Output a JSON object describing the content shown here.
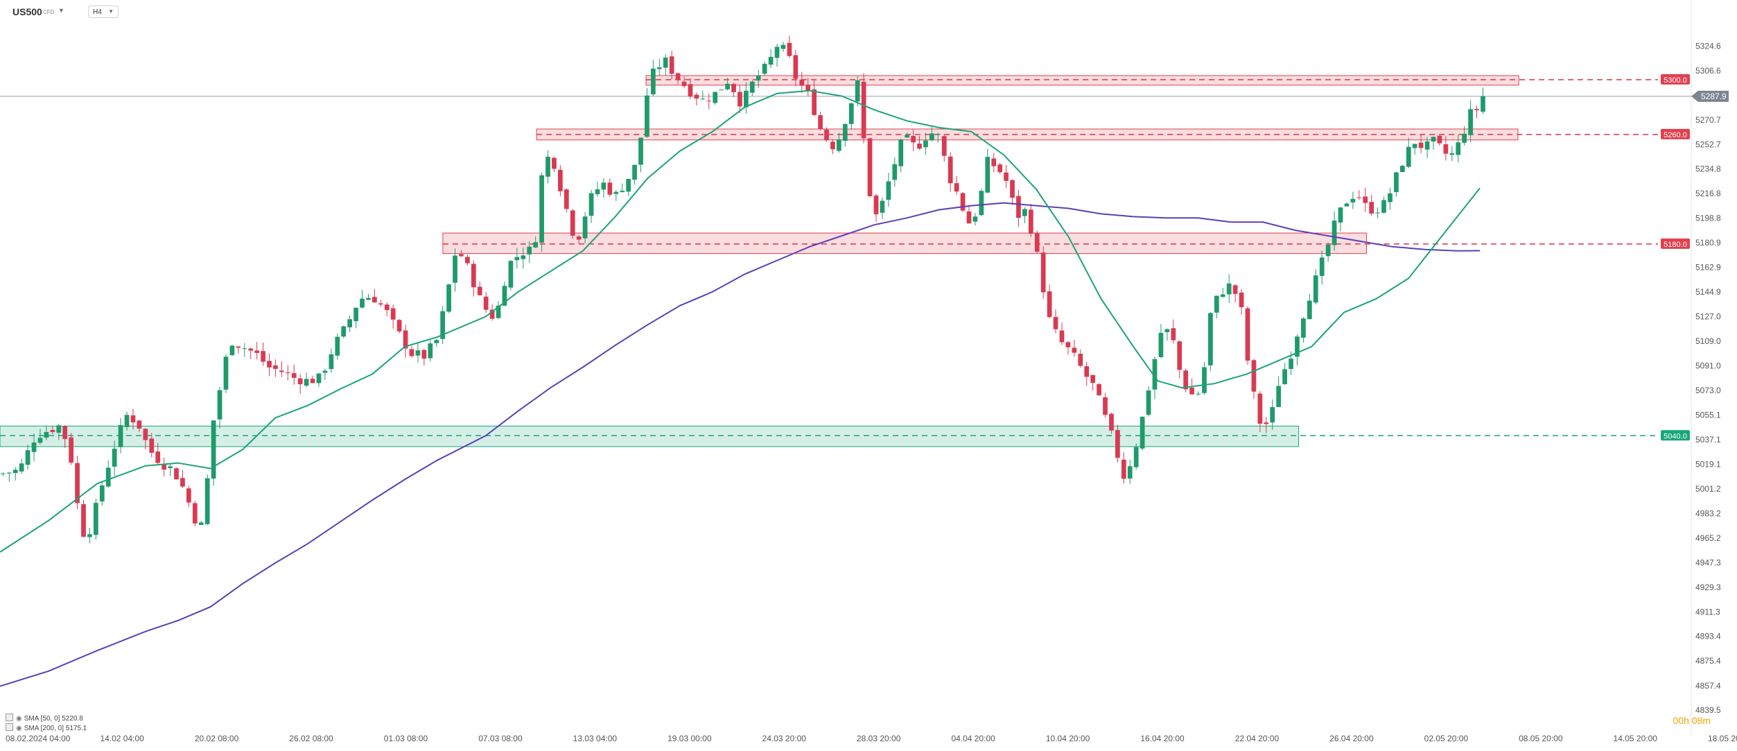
{
  "header": {
    "symbol": "US500",
    "type": "CFD",
    "timeframe": "H4"
  },
  "legend": [
    {
      "text": "SMA [50, 0] 5220.8",
      "color": "#1aa37a"
    },
    {
      "text": "SMA [200, 0] 5175.1",
      "color": "#5b3fb8"
    }
  ],
  "countdown": "00h 08m",
  "colors": {
    "up": "#1f9a6b",
    "down": "#d83a52",
    "sma50": "#1aa37a",
    "sma200": "#5b3fb8",
    "resistance": "#e0404f",
    "support": "#17a67a"
  },
  "chart_data": {
    "type": "candlestick",
    "y_range": [
      4835,
      5342
    ],
    "y_ticks": [
      "5324.6",
      "5306.6",
      "5288.7",
      "5270.7",
      "5252.7",
      "5234.8",
      "5216.8",
      "5198.8",
      "5180.9",
      "5162.9",
      "5144.9",
      "5127.0",
      "5109.0",
      "5091.0",
      "5073.0",
      "5055.1",
      "5037.1",
      "5019.1",
      "5001.2",
      "4983.2",
      "4965.2",
      "4947.3",
      "4929.3",
      "4911.3",
      "4893.4",
      "4875.4",
      "4857.4",
      "4839.5"
    ],
    "x_ticks": [
      "08.02.2024 04:00",
      "14.02 04:00",
      "20.02 08:00",
      "26.02 08:00",
      "01.03 08:00",
      "07.03 08:00",
      "13.03 04:00",
      "19.03 00:00",
      "24.03 20:00",
      "28.03 20:00",
      "04.04 20:00",
      "10.04 20:00",
      "16.04 20:00",
      "22.04 20:00",
      "26.04 20:00",
      "02.05 20:00",
      "08.05 20:00",
      "14.05 20:00",
      "18.05 20:00"
    ],
    "last_price": "5287.9",
    "levels": [
      {
        "label": "5300.0",
        "value": 5300.0,
        "kind": "resistance",
        "zone": [
          5296,
          5303
        ],
        "span": [
          0.399,
          0.938
        ]
      },
      {
        "label": "5260.0",
        "value": 5260.0,
        "kind": "resistance",
        "zone": [
          5256,
          5264
        ],
        "span": [
          0.3314,
          0.9375
        ]
      },
      {
        "label": "5180.0",
        "value": 5180.0,
        "kind": "resistance",
        "zone": [
          5173,
          5188
        ],
        "span": [
          0.2735,
          0.844
        ]
      },
      {
        "label": "5040.0",
        "value": 5040.0,
        "kind": "support",
        "zone": [
          5032,
          5047
        ],
        "span": [
          0.0,
          0.802
        ]
      }
    ],
    "path": [
      [
        0.0,
        5012
      ],
      [
        0.012,
        5015
      ],
      [
        0.022,
        5040
      ],
      [
        0.032,
        5045
      ],
      [
        0.038,
        5048
      ],
      [
        0.045,
        5018
      ],
      [
        0.05,
        4968
      ],
      [
        0.056,
        4972
      ],
      [
        0.062,
        5000
      ],
      [
        0.07,
        5030
      ],
      [
        0.078,
        5055
      ],
      [
        0.085,
        5050
      ],
      [
        0.092,
        5030
      ],
      [
        0.1,
        5020
      ],
      [
        0.107,
        5015
      ],
      [
        0.114,
        5000
      ],
      [
        0.12,
        4980
      ],
      [
        0.126,
        4972
      ],
      [
        0.13,
        5040
      ],
      [
        0.136,
        5075
      ],
      [
        0.142,
        5110
      ],
      [
        0.15,
        5105
      ],
      [
        0.158,
        5100
      ],
      [
        0.166,
        5090
      ],
      [
        0.174,
        5087
      ],
      [
        0.182,
        5082
      ],
      [
        0.19,
        5080
      ],
      [
        0.198,
        5082
      ],
      [
        0.206,
        5105
      ],
      [
        0.214,
        5120
      ],
      [
        0.222,
        5140
      ],
      [
        0.23,
        5142
      ],
      [
        0.238,
        5132
      ],
      [
        0.246,
        5115
      ],
      [
        0.254,
        5100
      ],
      [
        0.262,
        5098
      ],
      [
        0.27,
        5110
      ],
      [
        0.276,
        5142
      ],
      [
        0.282,
        5178
      ],
      [
        0.29,
        5160
      ],
      [
        0.298,
        5135
      ],
      [
        0.306,
        5125
      ],
      [
        0.314,
        5165
      ],
      [
        0.322,
        5174
      ],
      [
        0.33,
        5176
      ],
      [
        0.336,
        5245
      ],
      [
        0.342,
        5240
      ],
      [
        0.35,
        5205
      ],
      [
        0.356,
        5180
      ],
      [
        0.364,
        5212
      ],
      [
        0.372,
        5225
      ],
      [
        0.38,
        5215
      ],
      [
        0.388,
        5228
      ],
      [
        0.394,
        5240
      ],
      [
        0.398,
        5280
      ],
      [
        0.402,
        5302
      ],
      [
        0.41,
        5315
      ],
      [
        0.418,
        5302
      ],
      [
        0.426,
        5292
      ],
      [
        0.434,
        5285
      ],
      [
        0.442,
        5290
      ],
      [
        0.45,
        5300
      ],
      [
        0.458,
        5282
      ],
      [
        0.466,
        5300
      ],
      [
        0.474,
        5310
      ],
      [
        0.48,
        5325
      ],
      [
        0.486,
        5320
      ],
      [
        0.492,
        5300
      ],
      [
        0.5,
        5288
      ],
      [
        0.508,
        5260
      ],
      [
        0.516,
        5250
      ],
      [
        0.524,
        5278
      ],
      [
        0.53,
        5298
      ],
      [
        0.534,
        5250
      ],
      [
        0.538,
        5210
      ],
      [
        0.542,
        5198
      ],
      [
        0.55,
        5230
      ],
      [
        0.558,
        5258
      ],
      [
        0.566,
        5250
      ],
      [
        0.574,
        5262
      ],
      [
        0.58,
        5258
      ],
      [
        0.586,
        5230
      ],
      [
        0.592,
        5215
      ],
      [
        0.598,
        5195
      ],
      [
        0.604,
        5205
      ],
      [
        0.61,
        5240
      ],
      [
        0.616,
        5236
      ],
      [
        0.622,
        5225
      ],
      [
        0.628,
        5200
      ],
      [
        0.634,
        5205
      ],
      [
        0.64,
        5175
      ],
      [
        0.648,
        5125
      ],
      [
        0.654,
        5110
      ],
      [
        0.662,
        5100
      ],
      [
        0.67,
        5085
      ],
      [
        0.676,
        5075
      ],
      [
        0.682,
        5055
      ],
      [
        0.688,
        5035
      ],
      [
        0.694,
        5010
      ],
      [
        0.7,
        5025
      ],
      [
        0.706,
        5055
      ],
      [
        0.712,
        5090
      ],
      [
        0.718,
        5120
      ],
      [
        0.724,
        5112
      ],
      [
        0.73,
        5080
      ],
      [
        0.736,
        5070
      ],
      [
        0.742,
        5072
      ],
      [
        0.748,
        5132
      ],
      [
        0.754,
        5145
      ],
      [
        0.76,
        5150
      ],
      [
        0.766,
        5138
      ],
      [
        0.772,
        5082
      ],
      [
        0.778,
        5050
      ],
      [
        0.784,
        5048
      ],
      [
        0.79,
        5080
      ],
      [
        0.796,
        5095
      ],
      [
        0.802,
        5118
      ],
      [
        0.808,
        5140
      ],
      [
        0.814,
        5158
      ],
      [
        0.82,
        5178
      ],
      [
        0.826,
        5200
      ],
      [
        0.832,
        5212
      ],
      [
        0.838,
        5218
      ],
      [
        0.844,
        5206
      ],
      [
        0.85,
        5205
      ],
      [
        0.856,
        5210
      ],
      [
        0.862,
        5228
      ],
      [
        0.868,
        5245
      ],
      [
        0.874,
        5255
      ],
      [
        0.88,
        5250
      ],
      [
        0.886,
        5255
      ],
      [
        0.892,
        5246
      ],
      [
        0.898,
        5245
      ],
      [
        0.904,
        5262
      ],
      [
        0.908,
        5275
      ],
      [
        0.912,
        5278
      ],
      [
        0.914,
        5288
      ]
    ],
    "candle_count": 240,
    "seed": 7,
    "sma50": [
      [
        0.0,
        4955
      ],
      [
        0.03,
        4978
      ],
      [
        0.06,
        5005
      ],
      [
        0.09,
        5018
      ],
      [
        0.11,
        5020
      ],
      [
        0.13,
        5016
      ],
      [
        0.15,
        5030
      ],
      [
        0.17,
        5053
      ],
      [
        0.19,
        5062
      ],
      [
        0.21,
        5074
      ],
      [
        0.23,
        5085
      ],
      [
        0.25,
        5105
      ],
      [
        0.27,
        5112
      ],
      [
        0.3,
        5127
      ],
      [
        0.32,
        5145
      ],
      [
        0.34,
        5160
      ],
      [
        0.36,
        5175
      ],
      [
        0.38,
        5200
      ],
      [
        0.4,
        5228
      ],
      [
        0.42,
        5248
      ],
      [
        0.44,
        5262
      ],
      [
        0.46,
        5280
      ],
      [
        0.48,
        5290
      ],
      [
        0.5,
        5292
      ],
      [
        0.52,
        5288
      ],
      [
        0.54,
        5278
      ],
      [
        0.56,
        5270
      ],
      [
        0.58,
        5265
      ],
      [
        0.6,
        5262
      ],
      [
        0.62,
        5245
      ],
      [
        0.64,
        5220
      ],
      [
        0.66,
        5185
      ],
      [
        0.68,
        5140
      ],
      [
        0.7,
        5105
      ],
      [
        0.715,
        5080
      ],
      [
        0.73,
        5075
      ],
      [
        0.75,
        5078
      ],
      [
        0.77,
        5085
      ],
      [
        0.79,
        5095
      ],
      [
        0.81,
        5105
      ],
      [
        0.83,
        5130
      ],
      [
        0.85,
        5140
      ],
      [
        0.87,
        5155
      ],
      [
        0.89,
        5185
      ],
      [
        0.914,
        5220.8
      ]
    ],
    "sma200": [
      [
        0.0,
        4857
      ],
      [
        0.03,
        4868
      ],
      [
        0.06,
        4883
      ],
      [
        0.09,
        4897
      ],
      [
        0.11,
        4905
      ],
      [
        0.13,
        4915
      ],
      [
        0.15,
        4932
      ],
      [
        0.17,
        4947
      ],
      [
        0.19,
        4961
      ],
      [
        0.21,
        4977
      ],
      [
        0.23,
        4993
      ],
      [
        0.25,
        5008
      ],
      [
        0.27,
        5022
      ],
      [
        0.3,
        5040
      ],
      [
        0.32,
        5058
      ],
      [
        0.34,
        5075
      ],
      [
        0.36,
        5090
      ],
      [
        0.38,
        5106
      ],
      [
        0.4,
        5121
      ],
      [
        0.42,
        5135
      ],
      [
        0.44,
        5145
      ],
      [
        0.46,
        5158
      ],
      [
        0.48,
        5168
      ],
      [
        0.5,
        5178
      ],
      [
        0.52,
        5186
      ],
      [
        0.54,
        5194
      ],
      [
        0.56,
        5199
      ],
      [
        0.58,
        5205
      ],
      [
        0.6,
        5208
      ],
      [
        0.62,
        5210
      ],
      [
        0.64,
        5208
      ],
      [
        0.66,
        5206
      ],
      [
        0.68,
        5202
      ],
      [
        0.7,
        5200
      ],
      [
        0.72,
        5199
      ],
      [
        0.74,
        5199
      ],
      [
        0.76,
        5196
      ],
      [
        0.78,
        5196
      ],
      [
        0.8,
        5190
      ],
      [
        0.82,
        5186
      ],
      [
        0.84,
        5182
      ],
      [
        0.86,
        5178
      ],
      [
        0.88,
        5176
      ],
      [
        0.9,
        5175
      ],
      [
        0.914,
        5175.1
      ]
    ]
  }
}
